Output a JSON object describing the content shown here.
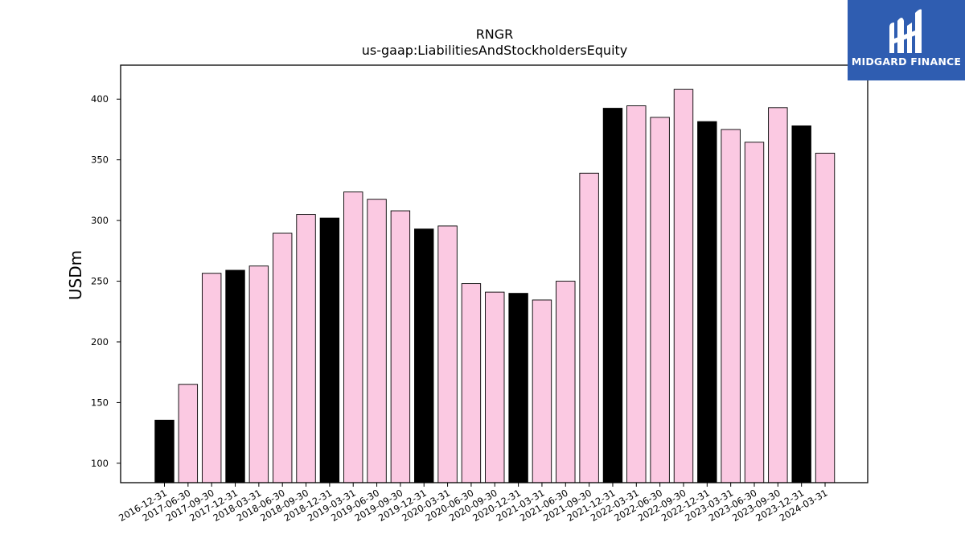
{
  "chart_data": {
    "type": "bar",
    "title": "RNGR",
    "subtitle": "us-gaap:LiabilitiesAndStockholdersEquity",
    "xlabel": "",
    "ylabel": "USDm",
    "ylim": [
      84,
      428
    ],
    "yticks": [
      100,
      150,
      200,
      250,
      300,
      350,
      400
    ],
    "grid": false,
    "categories": [
      "2016-12-31",
      "2017-06-30",
      "2017-09-30",
      "2017-12-31",
      "2018-03-31",
      "2018-06-30",
      "2018-09-30",
      "2018-12-31",
      "2019-03-31",
      "2019-06-30",
      "2019-09-30",
      "2019-12-31",
      "2020-03-31",
      "2020-06-30",
      "2020-09-30",
      "2020-12-31",
      "2021-03-31",
      "2021-06-30",
      "2021-09-30",
      "2021-12-31",
      "2022-03-31",
      "2022-06-30",
      "2022-09-30",
      "2022-12-31",
      "2023-03-31",
      "2023-06-30",
      "2023-09-30",
      "2023-12-31",
      "2024-03-31"
    ],
    "values": [
      135.5,
      165,
      256.5,
      259,
      262.5,
      289.5,
      305,
      302,
      323.5,
      317.5,
      308,
      293,
      295.5,
      248,
      241,
      240,
      234.5,
      250,
      339,
      392.5,
      394.5,
      385,
      408,
      381.5,
      375,
      364.5,
      393,
      378,
      355.5
    ],
    "bar_colors": [
      "#000000",
      "#fbc9e2",
      "#fbc9e2",
      "#000000",
      "#fbc9e2",
      "#fbc9e2",
      "#fbc9e2",
      "#000000",
      "#fbc9e2",
      "#fbc9e2",
      "#fbc9e2",
      "#000000",
      "#fbc9e2",
      "#fbc9e2",
      "#fbc9e2",
      "#000000",
      "#fbc9e2",
      "#fbc9e2",
      "#fbc9e2",
      "#000000",
      "#fbc9e2",
      "#fbc9e2",
      "#fbc9e2",
      "#000000",
      "#fbc9e2",
      "#fbc9e2",
      "#fbc9e2",
      "#000000",
      "#fbc9e2"
    ]
  },
  "logo": {
    "text": "MIDGARD FINANCE",
    "background": "#2f5db1"
  }
}
